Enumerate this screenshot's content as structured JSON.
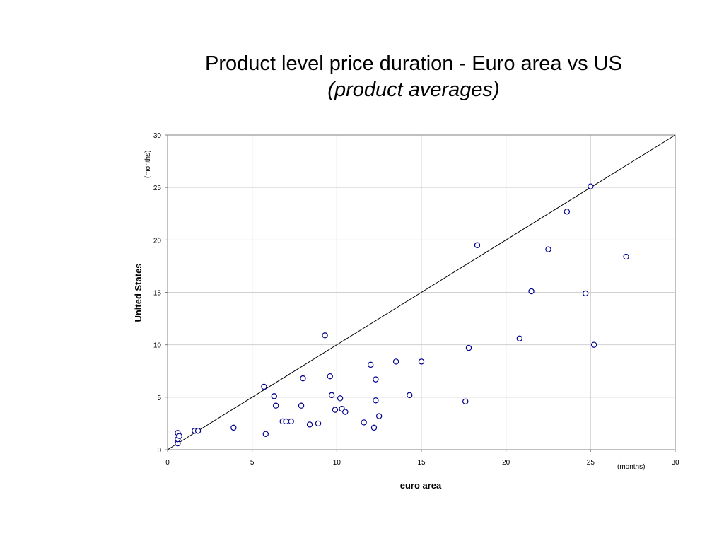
{
  "chart_data": {
    "type": "scatter",
    "title": "Product level price duration - Euro area  vs US",
    "subtitle": "(product averages)",
    "xlabel": "euro area",
    "ylabel": "United States",
    "x_unit": "(months)",
    "y_unit": "(months)",
    "xlim": [
      0,
      30
    ],
    "ylim": [
      0,
      30
    ],
    "xticks": [
      0,
      5,
      10,
      15,
      20,
      25,
      30
    ],
    "yticks": [
      0,
      5,
      10,
      15,
      20,
      25,
      30
    ],
    "grid": true,
    "reference_line": "45-degree line (y = x)",
    "marker_color": "#00008b",
    "points": [
      [
        0.6,
        0.6
      ],
      [
        0.6,
        1.0
      ],
      [
        0.6,
        1.6
      ],
      [
        0.7,
        1.3
      ],
      [
        1.6,
        1.8
      ],
      [
        1.8,
        1.8
      ],
      [
        3.9,
        2.1
      ],
      [
        5.7,
        6.0
      ],
      [
        5.8,
        1.5
      ],
      [
        6.3,
        5.1
      ],
      [
        6.4,
        4.2
      ],
      [
        6.8,
        2.7
      ],
      [
        7.0,
        2.7
      ],
      [
        7.3,
        2.7
      ],
      [
        7.9,
        4.2
      ],
      [
        8.0,
        6.8
      ],
      [
        8.4,
        2.4
      ],
      [
        8.9,
        2.5
      ],
      [
        9.3,
        10.9
      ],
      [
        9.6,
        7.0
      ],
      [
        9.7,
        5.2
      ],
      [
        9.9,
        3.8
      ],
      [
        10.2,
        4.9
      ],
      [
        10.3,
        3.9
      ],
      [
        10.5,
        3.6
      ],
      [
        11.6,
        2.6
      ],
      [
        12.0,
        8.1
      ],
      [
        12.2,
        2.1
      ],
      [
        12.3,
        6.7
      ],
      [
        12.3,
        4.7
      ],
      [
        12.5,
        3.2
      ],
      [
        13.5,
        8.4
      ],
      [
        14.3,
        5.2
      ],
      [
        15.0,
        8.4
      ],
      [
        17.6,
        4.6
      ],
      [
        17.8,
        9.7
      ],
      [
        18.3,
        19.5
      ],
      [
        20.8,
        10.6
      ],
      [
        21.5,
        15.1
      ],
      [
        22.5,
        19.1
      ],
      [
        23.6,
        22.7
      ],
      [
        24.7,
        14.9
      ],
      [
        25.0,
        25.1
      ],
      [
        25.2,
        10.0
      ],
      [
        27.1,
        18.4
      ]
    ]
  }
}
